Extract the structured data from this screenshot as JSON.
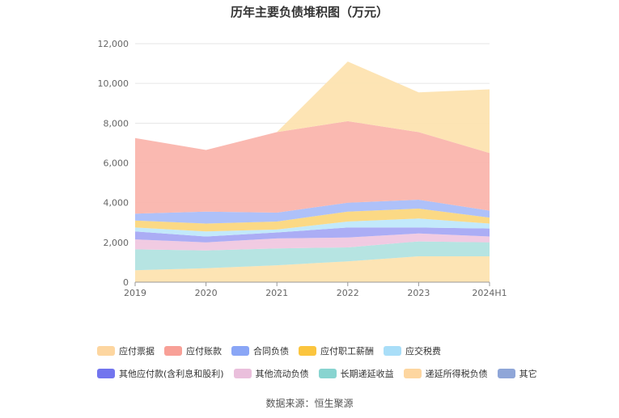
{
  "chart_data": {
    "type": "area",
    "stacked": true,
    "title": "历年主要负债堆积图（万元）",
    "categories": [
      "2019",
      "2020",
      "2021",
      "2022",
      "2023",
      "2024H1"
    ],
    "ylim": [
      0,
      12000
    ],
    "yticks": [
      "0",
      "2,000",
      "4,000",
      "6,000",
      "8,000",
      "10,000",
      "12,000"
    ],
    "ytick_values": [
      0,
      2000,
      4000,
      6000,
      8000,
      10000,
      12000
    ],
    "series": [
      {
        "name": "递延所得税负债",
        "color": "#fde3b0",
        "values": [
          600,
          700,
          850,
          1050,
          1300,
          1300
        ]
      },
      {
        "name": "长期递延收益",
        "color": "#b2e3e0",
        "values": [
          1050,
          900,
          850,
          700,
          750,
          700
        ]
      },
      {
        "name": "其他流动负债",
        "color": "#f0c8e0",
        "values": [
          500,
          400,
          500,
          500,
          400,
          300
        ]
      },
      {
        "name": "其他应付款(含利息和股利)",
        "color": "#a6a9f4",
        "values": [
          400,
          300,
          300,
          500,
          300,
          400
        ]
      },
      {
        "name": "应交税费",
        "color": "#bfe8fb",
        "values": [
          200,
          250,
          150,
          300,
          450,
          250
        ]
      },
      {
        "name": "应付职工薪酬",
        "color": "#fbd77e",
        "values": [
          350,
          400,
          400,
          500,
          500,
          300
        ]
      },
      {
        "name": "合同负债",
        "color": "#aabef9",
        "values": [
          350,
          600,
          450,
          450,
          450,
          350
        ]
      },
      {
        "name": "应付账款",
        "color": "#fab5ad",
        "values": [
          3800,
          3100,
          4050,
          4100,
          3400,
          2900
        ]
      },
      {
        "name": "应付票据",
        "color": "#fde3b0",
        "values": [
          0,
          0,
          0,
          3000,
          2000,
          3200
        ]
      },
      {
        "name": "其它",
        "color": "#aebee0",
        "values": [
          0,
          0,
          0,
          0,
          0,
          0
        ]
      }
    ],
    "legend_rows": [
      [
        {
          "name": "应付票据",
          "color": "#fdd6a0"
        },
        {
          "name": "应付账款",
          "color": "#f8a097"
        },
        {
          "name": "合同负债",
          "color": "#8aa6f6"
        },
        {
          "name": "应付职工薪酬",
          "color": "#fbc53e"
        },
        {
          "name": "应交税费",
          "color": "#a9def8"
        }
      ],
      [
        {
          "name": "其他应付款(含利息和股利)",
          "color": "#7275ee"
        },
        {
          "name": "其他流动负债",
          "color": "#eabfdc"
        },
        {
          "name": "长期递延收益",
          "color": "#88d4d0"
        },
        {
          "name": "递延所得税负债",
          "color": "#fdd6a0"
        },
        {
          "name": "其它",
          "color": "#8fa6d8"
        }
      ]
    ]
  },
  "source": "数据来源：恒生聚源"
}
